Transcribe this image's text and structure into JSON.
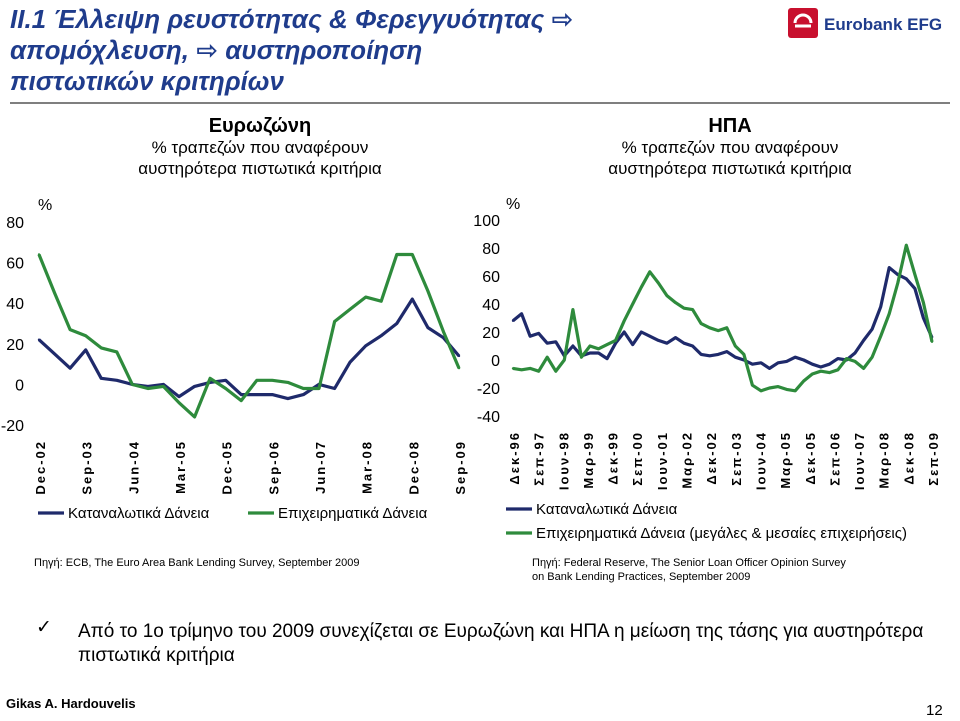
{
  "slide": {
    "title": "ΙΙ.1  Έλλειψη ρευστότητας & Φερεγγυότητας ⇨\n      απομόχλευση, ⇨ αυστηροποίηση\n      πιστωτικών κριτηρίων",
    "logo_text": "Eurobank EFG",
    "bullet_text": "Από το 1ο τρίμηνο του 2009 συνεχίζεται σε Ευρωζώνη και ΗΠΑ η μείωση της τάσης για αυστηρότερα πιστωτικά κριτήρια",
    "author": "Gikas A. Hardouvelis",
    "page_number": "12",
    "colors": {
      "title": "#1f3c8c",
      "navy": "#1f2a6b",
      "green": "#2e8b3c"
    }
  },
  "chart_data": [
    {
      "type": "line",
      "title": "Ευρωζώνη",
      "subtitle": "% τραπεζών που αναφέρουν\nαυστηρότερα πιστωτικά κριτήρια",
      "ylabel": "%",
      "ylim": [
        -20,
        80
      ],
      "yticks": [
        "80",
        "60",
        "40",
        "20",
        "0",
        "-20"
      ],
      "xticks": [
        "Dec-02",
        "Sep-03",
        "Jun-04",
        "Mar-05",
        "Dec-05",
        "Sep-06",
        "Jun-07",
        "Mar-08",
        "Dec-08",
        "Sep-09"
      ],
      "source": "Πηγή: ECB, The Euro Area Bank Lending Survey, September 2009",
      "series": [
        {
          "name": "Καταναλωτικά Δάνεια",
          "color": "#1f2a6b",
          "values": [
            22,
            15,
            8,
            17,
            3,
            2,
            0,
            -1,
            0,
            -6,
            -1,
            1,
            2,
            -5,
            -5,
            -5,
            -7,
            -5,
            0,
            -2,
            11,
            19,
            24,
            30,
            42,
            28,
            23,
            14
          ]
        },
        {
          "name": "Επιχειρηματικά Δάνεια",
          "color": "#2e8b3c",
          "values": [
            64,
            45,
            27,
            24,
            18,
            16,
            0,
            -2,
            -1,
            -9,
            -16,
            3,
            -2,
            -8,
            2,
            2,
            1,
            -2,
            -2,
            31,
            37,
            43,
            41,
            64,
            64,
            46,
            26,
            8
          ]
        }
      ]
    },
    {
      "type": "line",
      "title": "ΗΠΑ",
      "subtitle": "% τραπεζών που αναφέρουν\nαυστηρότερα πιστωτικά κριτήρια",
      "ylabel": "%",
      "ylim": [
        -40,
        100
      ],
      "yticks": [
        "100",
        "80",
        "60",
        "40",
        "20",
        "0",
        "-20",
        "-40"
      ],
      "xticks": [
        "Δεκ-96",
        "Σεπ-97",
        "Ιουν-98",
        "Μαρ-99",
        "Δεκ-99",
        "Σεπ-00",
        "Ιουν-01",
        "Μαρ-02",
        "Δεκ-02",
        "Σεπ-03",
        "Ιουν-04",
        "Μαρ-05",
        "Δεκ-05",
        "Σεπ-06",
        "Ιουν-07",
        "Μαρ-08",
        "Δεκ-08",
        "Σεπ-09"
      ],
      "source": "Πηγή: Federal Reserve, The Senior Loan Officer Opinion Survey\non Bank Lending Practices, September 2009",
      "series": [
        {
          "name": "Καταναλωτικά Δάνεια",
          "color": "#1f2a6b",
          "values": [
            28,
            33,
            17,
            19,
            12,
            13,
            3,
            10,
            3,
            5,
            5,
            1,
            12,
            20,
            11,
            20,
            17,
            14,
            12,
            16,
            12,
            10,
            4,
            3,
            4,
            6,
            2,
            0,
            -3,
            -2,
            -6,
            -2,
            -1,
            2,
            0,
            -3,
            -5,
            -3,
            1,
            0,
            5,
            14,
            22,
            38,
            66,
            61,
            58,
            51,
            30,
            16
          ]
        },
        {
          "name": "Επιχειρηματικά Δάνεια (μεγάλες & μεσαίες επιχειρήσεις)",
          "color": "#2e8b3c",
          "values": [
            -6,
            -7,
            -6,
            -8,
            2,
            -8,
            0,
            36,
            2,
            10,
            8,
            11,
            14,
            28,
            40,
            52,
            63,
            55,
            46,
            41,
            37,
            36,
            26,
            23,
            21,
            23,
            10,
            4,
            -18,
            -22,
            -20,
            -19,
            -21,
            -22,
            -15,
            -10,
            -8,
            -9,
            -7,
            1,
            -1,
            -6,
            2,
            17,
            33,
            55,
            82,
            61,
            41,
            13
          ]
        }
      ]
    }
  ]
}
